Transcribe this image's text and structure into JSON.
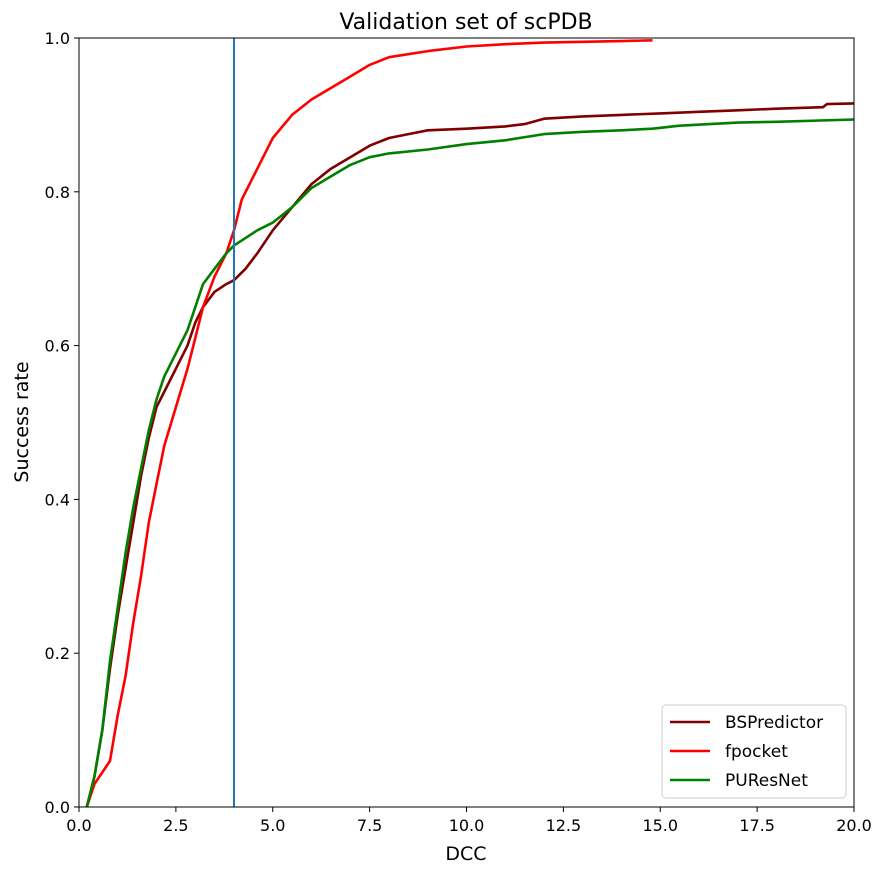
{
  "chart_data": {
    "type": "line",
    "title": "Validation set of scPDB",
    "xlabel": "DCC",
    "ylabel": "Success rate",
    "xlim": [
      0,
      20
    ],
    "ylim": [
      0,
      1
    ],
    "xticks": [
      0,
      2.5,
      5,
      7.5,
      10,
      12.5,
      15,
      17.5,
      20
    ],
    "xtick_labels": [
      "0.0",
      "2.5",
      "5.0",
      "7.5",
      "10.0",
      "12.5",
      "15.0",
      "17.5",
      "20.0"
    ],
    "yticks": [
      0,
      0.2,
      0.4,
      0.6,
      0.8,
      1.0
    ],
    "ytick_labels": [
      "0.0",
      "0.2",
      "0.4",
      "0.6",
      "0.8",
      "1.0"
    ],
    "grid": false,
    "legend_position": "bottom-right",
    "vline": {
      "x": 4,
      "color": "#1f77b4"
    },
    "series": [
      {
        "name": "BSPredictor",
        "color": "#800000",
        "x": [
          0.2,
          0.4,
          0.6,
          0.8,
          1.0,
          1.2,
          1.4,
          1.6,
          1.8,
          2.0,
          2.2,
          2.5,
          2.8,
          3.0,
          3.2,
          3.5,
          3.8,
          4.0,
          4.3,
          4.6,
          5.0,
          5.5,
          6.0,
          6.5,
          7.0,
          7.5,
          8.0,
          8.5,
          9.0,
          10.0,
          11.0,
          11.5,
          12.0,
          13.0,
          14.0,
          15.0,
          16.0,
          17.0,
          18.0,
          19.2,
          19.3,
          20.0
        ],
        "y": [
          0.0,
          0.04,
          0.1,
          0.18,
          0.25,
          0.31,
          0.37,
          0.43,
          0.48,
          0.52,
          0.54,
          0.57,
          0.6,
          0.63,
          0.65,
          0.67,
          0.68,
          0.685,
          0.7,
          0.72,
          0.75,
          0.78,
          0.81,
          0.83,
          0.845,
          0.86,
          0.87,
          0.875,
          0.88,
          0.882,
          0.885,
          0.888,
          0.895,
          0.898,
          0.9,
          0.902,
          0.904,
          0.906,
          0.908,
          0.91,
          0.914,
          0.915
        ]
      },
      {
        "name": "fpocket",
        "color": "#ff0000",
        "x": [
          0.2,
          0.4,
          0.6,
          0.8,
          1.0,
          1.2,
          1.4,
          1.6,
          1.8,
          2.0,
          2.2,
          2.5,
          2.8,
          3.0,
          3.2,
          3.5,
          3.8,
          4.0,
          4.2,
          4.5,
          4.8,
          5.0,
          5.5,
          6.0,
          6.5,
          7.0,
          7.5,
          8.0,
          9.0,
          10.0,
          11.0,
          12.0,
          13.0,
          14.0,
          14.8
        ],
        "y": [
          0.0,
          0.03,
          0.045,
          0.06,
          0.12,
          0.17,
          0.24,
          0.3,
          0.37,
          0.42,
          0.47,
          0.52,
          0.57,
          0.61,
          0.65,
          0.69,
          0.72,
          0.75,
          0.79,
          0.82,
          0.85,
          0.87,
          0.9,
          0.92,
          0.935,
          0.95,
          0.965,
          0.975,
          0.983,
          0.989,
          0.992,
          0.994,
          0.995,
          0.996,
          0.997
        ]
      },
      {
        "name": "PUResNet",
        "color": "#008000",
        "x": [
          0.2,
          0.4,
          0.6,
          0.8,
          1.0,
          1.2,
          1.4,
          1.6,
          1.8,
          2.0,
          2.2,
          2.5,
          2.8,
          3.0,
          3.2,
          3.5,
          3.8,
          4.0,
          4.3,
          4.6,
          5.0,
          5.5,
          6.0,
          6.5,
          7.0,
          7.5,
          8.0,
          9.0,
          10.0,
          11.0,
          12.0,
          13.0,
          14.0,
          14.8,
          15.5,
          17.0,
          18.0,
          20.0
        ],
        "y": [
          0.0,
          0.04,
          0.1,
          0.19,
          0.26,
          0.33,
          0.39,
          0.44,
          0.49,
          0.53,
          0.56,
          0.59,
          0.62,
          0.65,
          0.68,
          0.7,
          0.72,
          0.73,
          0.74,
          0.75,
          0.76,
          0.78,
          0.805,
          0.82,
          0.835,
          0.845,
          0.85,
          0.855,
          0.862,
          0.867,
          0.875,
          0.878,
          0.88,
          0.882,
          0.886,
          0.89,
          0.891,
          0.894
        ]
      }
    ]
  }
}
